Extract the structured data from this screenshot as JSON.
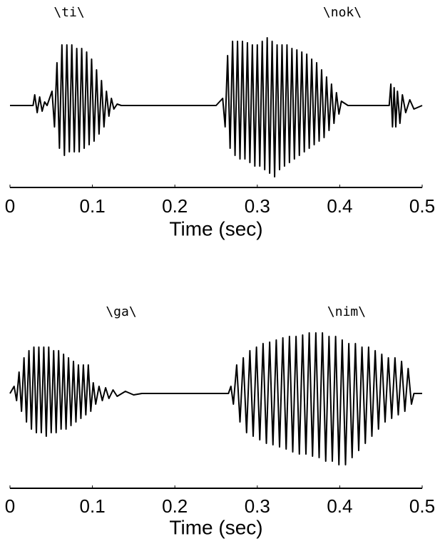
{
  "chart_data": [
    {
      "type": "line",
      "annotations": [
        "\\ti\\",
        "\\nok\\"
      ],
      "xlabel": "Time (sec)",
      "color": "#000000",
      "xlim": [
        0,
        0.5
      ],
      "xticks": [
        0,
        0.1,
        0.2,
        0.3,
        0.4,
        0.5
      ],
      "ylim": [
        -1.1,
        1.1
      ],
      "x": [
        0,
        0.028,
        0.03,
        0.033,
        0.036,
        0.039,
        0.042,
        0.045,
        0.051,
        0.054,
        0.057,
        0.06,
        0.063,
        0.066,
        0.069,
        0.072,
        0.075,
        0.078,
        0.081,
        0.084,
        0.087,
        0.09,
        0.093,
        0.096,
        0.099,
        0.102,
        0.105,
        0.108,
        0.111,
        0.114,
        0.117,
        0.12,
        0.123,
        0.126,
        0.13,
        0.135,
        0.25,
        0.258,
        0.261,
        0.264,
        0.267,
        0.27,
        0.273,
        0.276,
        0.279,
        0.282,
        0.285,
        0.288,
        0.291,
        0.294,
        0.297,
        0.3,
        0.303,
        0.306,
        0.309,
        0.312,
        0.315,
        0.318,
        0.321,
        0.324,
        0.327,
        0.33,
        0.333,
        0.336,
        0.339,
        0.342,
        0.345,
        0.348,
        0.351,
        0.354,
        0.357,
        0.36,
        0.363,
        0.366,
        0.369,
        0.372,
        0.375,
        0.378,
        0.381,
        0.384,
        0.387,
        0.39,
        0.393,
        0.396,
        0.399,
        0.402,
        0.41,
        0.46,
        0.462,
        0.464,
        0.466,
        0.468,
        0.47,
        0.473,
        0.476,
        0.48,
        0.485,
        0.49,
        0.5
      ],
      "values": [
        0,
        0,
        0.15,
        -0.1,
        0.12,
        -0.08,
        0.05,
        0,
        0.2,
        -0.3,
        0.6,
        -0.6,
        0.85,
        -0.7,
        0.85,
        -0.65,
        0.85,
        -0.65,
        0.8,
        -0.65,
        0.8,
        -0.6,
        0.75,
        -0.55,
        0.65,
        -0.5,
        0.5,
        -0.4,
        0.35,
        -0.3,
        0.2,
        -0.15,
        0.1,
        -0.05,
        0.02,
        0,
        0,
        0.1,
        -0.3,
        0.7,
        -0.6,
        0.9,
        -0.7,
        0.9,
        -0.75,
        0.9,
        -0.75,
        0.88,
        -0.8,
        0.85,
        -0.85,
        0.85,
        -0.85,
        0.9,
        -0.9,
        0.95,
        -0.95,
        0.9,
        -1.0,
        0.85,
        -0.9,
        0.85,
        -0.85,
        0.85,
        -0.8,
        0.8,
        -0.75,
        0.78,
        -0.7,
        0.75,
        -0.65,
        0.72,
        -0.6,
        0.65,
        -0.55,
        0.6,
        -0.5,
        0.5,
        -0.45,
        0.4,
        -0.35,
        0.3,
        -0.25,
        0.18,
        -0.12,
        0.06,
        0,
        0,
        0.3,
        -0.3,
        0.25,
        -0.3,
        0.2,
        -0.25,
        0.15,
        -0.1,
        0.08,
        -0.05,
        0
      ]
    },
    {
      "type": "line",
      "annotations": [
        "\\ga\\",
        "\\nim\\"
      ],
      "xlabel": "Time (sec)",
      "color": "#000000",
      "xlim": [
        0,
        0.5
      ],
      "xticks": [
        0,
        0.1,
        0.2,
        0.3,
        0.4,
        0.5
      ],
      "ylim": [
        -1.1,
        1.1
      ],
      "x": [
        0,
        0.005,
        0.008,
        0.011,
        0.014,
        0.017,
        0.02,
        0.023,
        0.026,
        0.029,
        0.032,
        0.035,
        0.038,
        0.041,
        0.044,
        0.047,
        0.05,
        0.053,
        0.056,
        0.059,
        0.062,
        0.065,
        0.068,
        0.071,
        0.074,
        0.077,
        0.08,
        0.083,
        0.086,
        0.089,
        0.092,
        0.095,
        0.098,
        0.101,
        0.104,
        0.108,
        0.112,
        0.116,
        0.12,
        0.125,
        0.13,
        0.14,
        0.15,
        0.16,
        0.265,
        0.268,
        0.271,
        0.275,
        0.279,
        0.283,
        0.287,
        0.291,
        0.295,
        0.299,
        0.303,
        0.307,
        0.311,
        0.315,
        0.319,
        0.323,
        0.327,
        0.331,
        0.335,
        0.339,
        0.343,
        0.347,
        0.351,
        0.355,
        0.359,
        0.363,
        0.367,
        0.371,
        0.375,
        0.379,
        0.383,
        0.387,
        0.391,
        0.395,
        0.399,
        0.403,
        0.407,
        0.411,
        0.415,
        0.419,
        0.423,
        0.427,
        0.431,
        0.435,
        0.439,
        0.443,
        0.447,
        0.451,
        0.455,
        0.459,
        0.463,
        0.467,
        0.471,
        0.475,
        0.479,
        0.483,
        0.487,
        0.49,
        0.5
      ],
      "values": [
        0,
        0.1,
        -0.1,
        0.3,
        -0.25,
        0.5,
        -0.4,
        0.6,
        -0.5,
        0.65,
        -0.55,
        0.65,
        -0.55,
        0.65,
        -0.6,
        0.65,
        -0.55,
        0.6,
        -0.55,
        0.6,
        -0.5,
        0.55,
        -0.5,
        0.5,
        -0.45,
        0.45,
        -0.4,
        0.4,
        -0.35,
        0.4,
        -0.3,
        0.4,
        -0.25,
        0.15,
        -0.15,
        0.1,
        -0.1,
        0.08,
        -0.07,
        0.05,
        -0.04,
        0.03,
        -0.02,
        0,
        0,
        0.1,
        -0.15,
        0.4,
        -0.4,
        0.5,
        -0.55,
        0.6,
        -0.6,
        0.65,
        -0.65,
        0.7,
        -0.7,
        0.72,
        -0.72,
        0.75,
        -0.75,
        0.78,
        -0.78,
        0.8,
        -0.82,
        0.8,
        -0.85,
        0.82,
        -0.85,
        0.85,
        -0.88,
        0.85,
        -0.9,
        0.85,
        -0.95,
        0.8,
        -0.95,
        0.8,
        -1.0,
        0.75,
        -1.0,
        0.7,
        -0.9,
        0.7,
        -0.8,
        0.65,
        -0.7,
        0.65,
        -0.6,
        0.6,
        -0.5,
        0.55,
        -0.4,
        0.5,
        -0.35,
        0.5,
        -0.3,
        0.45,
        -0.25,
        0.35,
        -0.15,
        0,
        0
      ]
    }
  ]
}
